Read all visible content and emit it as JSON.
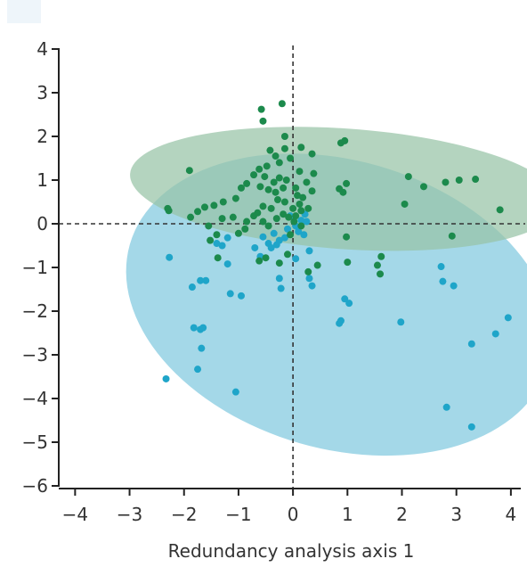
{
  "chart_data": {
    "type": "scatter",
    "title": "",
    "xlabel": "Redundancy analysis axis 1",
    "ylabel": "",
    "xlim": [
      -4.3,
      4.1
    ],
    "ylim": [
      -6,
      4
    ],
    "x_ticks": [
      -4,
      -3,
      -2,
      -1,
      0,
      1,
      2,
      3,
      4
    ],
    "y_ticks": [
      -6,
      -5,
      -4,
      -3,
      -2,
      -1,
      0,
      1,
      2,
      3,
      4
    ],
    "x_tick_labels": [
      "−4",
      "−3",
      "−2",
      "−1",
      "0",
      "1",
      "2",
      "3",
      "4"
    ],
    "y_tick_labels": [
      "−6",
      "−5",
      "−4",
      "−3",
      "−2",
      "−1",
      "0",
      "1",
      "2",
      "3",
      "4"
    ],
    "reference_lines": {
      "x": 0,
      "y": 0
    },
    "grid": false,
    "legend": "none",
    "series": [
      {
        "color": "#1fa5c9",
        "ellipse": {
          "center": [
            0.85,
            -1.85
          ],
          "semi_axes": [
            4.0,
            3.3
          ],
          "rotation_deg": -16,
          "fill": "#a4d8e8"
        },
        "points": [
          [
            -2.27,
            -0.77
          ],
          [
            -2.33,
            -3.55
          ],
          [
            -1.85,
            -1.45
          ],
          [
            -1.7,
            -1.3
          ],
          [
            -1.6,
            -1.3
          ],
          [
            -1.82,
            -2.38
          ],
          [
            -1.7,
            -2.42
          ],
          [
            -1.65,
            -2.38
          ],
          [
            -1.68,
            -2.85
          ],
          [
            -1.75,
            -3.33
          ],
          [
            -1.15,
            -1.6
          ],
          [
            -0.95,
            -1.65
          ],
          [
            -1.05,
            -3.85
          ],
          [
            -0.25,
            -1.25
          ],
          [
            -0.22,
            -1.48
          ],
          [
            0.3,
            -1.25
          ],
          [
            0.35,
            -1.42
          ],
          [
            0.88,
            -2.22
          ],
          [
            0.85,
            -2.28
          ],
          [
            0.95,
            -1.72
          ],
          [
            1.03,
            -1.82
          ],
          [
            1.98,
            -2.25
          ],
          [
            2.72,
            -0.98
          ],
          [
            2.75,
            -1.32
          ],
          [
            2.95,
            -1.42
          ],
          [
            2.82,
            -4.2
          ],
          [
            3.28,
            -2.75
          ],
          [
            3.28,
            -4.65
          ],
          [
            3.72,
            -2.52
          ],
          [
            3.95,
            -2.15
          ],
          [
            -1.3,
            -0.5
          ],
          [
            -1.2,
            -0.92
          ],
          [
            -1.4,
            -0.45
          ],
          [
            -1.2,
            -0.32
          ],
          [
            -0.7,
            -0.55
          ],
          [
            -0.55,
            -0.3
          ],
          [
            -0.45,
            -0.45
          ],
          [
            -0.35,
            -0.22
          ],
          [
            -0.25,
            -0.38
          ],
          [
            -0.15,
            -0.32
          ],
          [
            -0.3,
            -0.48
          ],
          [
            -0.1,
            -0.12
          ],
          [
            0.05,
            -0.05
          ],
          [
            0.15,
            0.08
          ],
          [
            0.25,
            0.05
          ],
          [
            0.2,
            -0.25
          ],
          [
            0.1,
            -0.18
          ],
          [
            -0.05,
            0.18
          ],
          [
            0.22,
            0.22
          ],
          [
            -0.4,
            -0.55
          ],
          [
            -0.6,
            -0.75
          ],
          [
            0.05,
            -0.8
          ],
          [
            0.3,
            -0.62
          ]
        ]
      },
      {
        "color": "#1c8a4c",
        "ellipse": {
          "center": [
            0.95,
            0.8
          ],
          "semi_axes": [
            3.95,
            1.38
          ],
          "rotation_deg": -4,
          "fill": "#97c4a6"
        },
        "points": [
          [
            -0.58,
            2.62
          ],
          [
            -0.55,
            2.35
          ],
          [
            -0.2,
            2.75
          ],
          [
            -0.15,
            2.0
          ],
          [
            -0.15,
            1.72
          ],
          [
            -0.05,
            1.5
          ],
          [
            0.15,
            1.75
          ],
          [
            0.35,
            1.6
          ],
          [
            0.88,
            1.85
          ],
          [
            0.95,
            1.9
          ],
          [
            0.38,
            1.15
          ],
          [
            0.12,
            1.2
          ],
          [
            -0.42,
            1.68
          ],
          [
            -0.32,
            1.55
          ],
          [
            -0.25,
            1.4
          ],
          [
            -0.48,
            1.32
          ],
          [
            -0.62,
            1.25
          ],
          [
            -0.72,
            1.12
          ],
          [
            -0.25,
            1.05
          ],
          [
            -0.12,
            1.0
          ],
          [
            -0.52,
            1.08
          ],
          [
            -0.35,
            0.95
          ],
          [
            -0.85,
            0.92
          ],
          [
            -0.95,
            0.82
          ],
          [
            -0.6,
            0.85
          ],
          [
            -0.45,
            0.78
          ],
          [
            -0.32,
            0.72
          ],
          [
            -0.18,
            0.82
          ],
          [
            0.05,
            0.82
          ],
          [
            0.25,
            0.95
          ],
          [
            0.08,
            0.65
          ],
          [
            0.18,
            0.6
          ],
          [
            0.35,
            0.75
          ],
          [
            0.12,
            0.45
          ],
          [
            0.0,
            0.35
          ],
          [
            -0.15,
            0.5
          ],
          [
            -0.28,
            0.55
          ],
          [
            -0.4,
            0.35
          ],
          [
            -0.55,
            0.4
          ],
          [
            -0.65,
            0.25
          ],
          [
            -0.72,
            0.18
          ],
          [
            -0.85,
            0.05
          ],
          [
            -0.55,
            0.05
          ],
          [
            -0.45,
            -0.05
          ],
          [
            -0.3,
            0.12
          ],
          [
            -0.18,
            0.22
          ],
          [
            -0.08,
            0.15
          ],
          [
            0.05,
            0.18
          ],
          [
            0.15,
            0.3
          ],
          [
            0.28,
            0.35
          ],
          [
            -1.05,
            0.58
          ],
          [
            -1.28,
            0.5
          ],
          [
            -1.45,
            0.42
          ],
          [
            -1.62,
            0.38
          ],
          [
            -1.75,
            0.28
          ],
          [
            -1.88,
            0.15
          ],
          [
            -1.1,
            0.15
          ],
          [
            -1.3,
            0.12
          ],
          [
            -1.55,
            -0.05
          ],
          [
            -1.4,
            -0.25
          ],
          [
            -1.52,
            -0.38
          ],
          [
            -1.38,
            -0.78
          ],
          [
            -1.0,
            -0.22
          ],
          [
            -0.88,
            -0.12
          ],
          [
            -0.62,
            -0.85
          ],
          [
            -0.5,
            -0.78
          ],
          [
            -0.25,
            -0.9
          ],
          [
            -0.1,
            -0.7
          ],
          [
            0.45,
            -0.95
          ],
          [
            0.28,
            -1.1
          ],
          [
            -2.3,
            0.35
          ],
          [
            -2.28,
            0.3
          ],
          [
            -1.9,
            1.22
          ],
          [
            0.85,
            0.8
          ],
          [
            0.92,
            0.72
          ],
          [
            0.98,
            0.92
          ],
          [
            0.98,
            -0.3
          ],
          [
            1.0,
            -0.88
          ],
          [
            1.55,
            -0.95
          ],
          [
            1.62,
            -0.75
          ],
          [
            1.6,
            -1.15
          ],
          [
            2.05,
            0.45
          ],
          [
            2.12,
            1.08
          ],
          [
            2.4,
            0.85
          ],
          [
            2.8,
            0.95
          ],
          [
            3.05,
            1.0
          ],
          [
            3.35,
            1.02
          ],
          [
            2.92,
            -0.28
          ],
          [
            3.8,
            0.32
          ],
          [
            0.15,
            -0.05
          ],
          [
            -0.05,
            -0.25
          ],
          [
            0.02,
            0.05
          ]
        ]
      }
    ]
  }
}
